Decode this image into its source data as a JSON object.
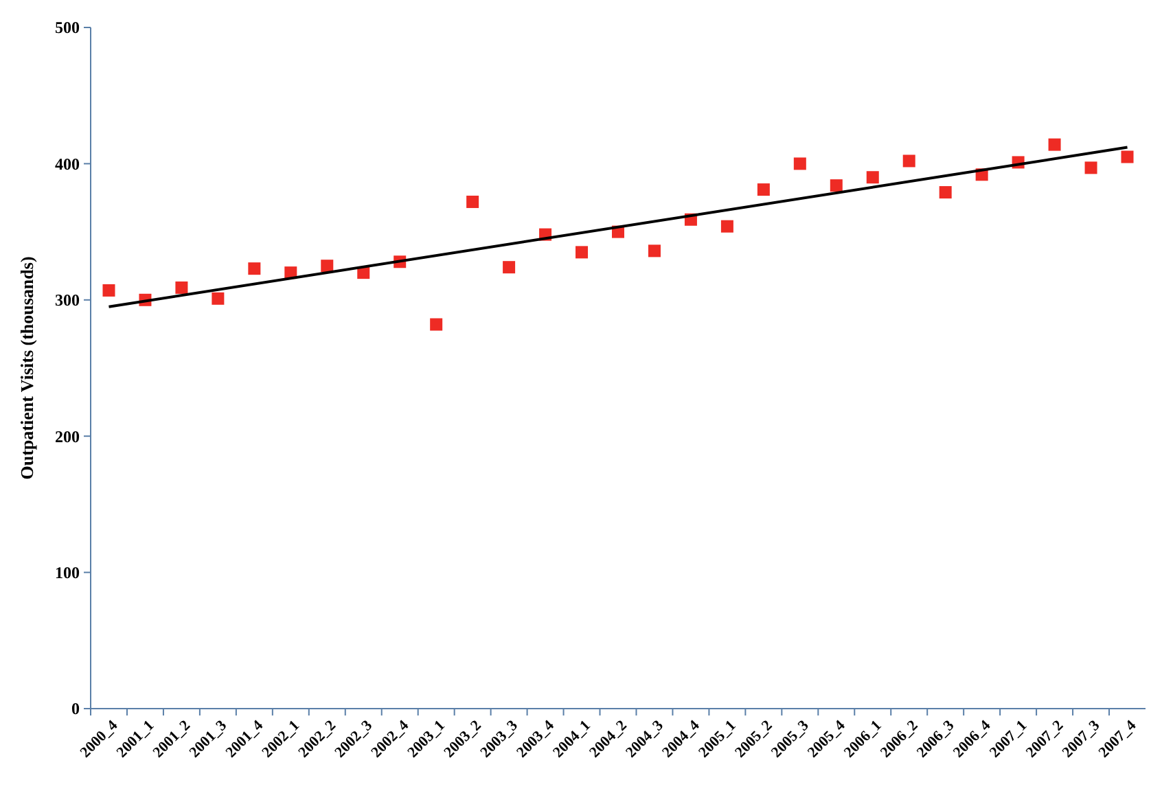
{
  "chart_data": {
    "type": "scatter",
    "ylabel": "Outpatient Visits (thousands)",
    "categories": [
      "2000_4",
      "2001_1",
      "2001_2",
      "2001_3",
      "2001_4",
      "2002_1",
      "2002_2",
      "2002_3",
      "2002_4",
      "2003_1",
      "2003_2",
      "2003_3",
      "2003_4",
      "2004_1",
      "2004_2",
      "2004_3",
      "2004_4",
      "2005_1",
      "2005_2",
      "2005_3",
      "2005_4",
      "2006_1",
      "2006_2",
      "2006_3",
      "2006_4",
      "2007_1",
      "2007_2",
      "2007_3",
      "2007_4"
    ],
    "series": [
      {
        "color": "#ee2b24",
        "marker": "square",
        "values": [
          307,
          300,
          309,
          301,
          323,
          320,
          325,
          320,
          328,
          282,
          372,
          324,
          348,
          335,
          350,
          336,
          359,
          354,
          381,
          400,
          384,
          390,
          402,
          379,
          392,
          401,
          414,
          397,
          405
        ]
      },
      {
        "type": "line",
        "color": "#000000",
        "x": [
          "2000_4",
          "2007_4"
        ],
        "values": [
          295,
          412
        ]
      }
    ],
    "ylim": [
      0,
      500
    ],
    "yticks": [
      0,
      100,
      200,
      300,
      400,
      500
    ],
    "grid": false
  }
}
